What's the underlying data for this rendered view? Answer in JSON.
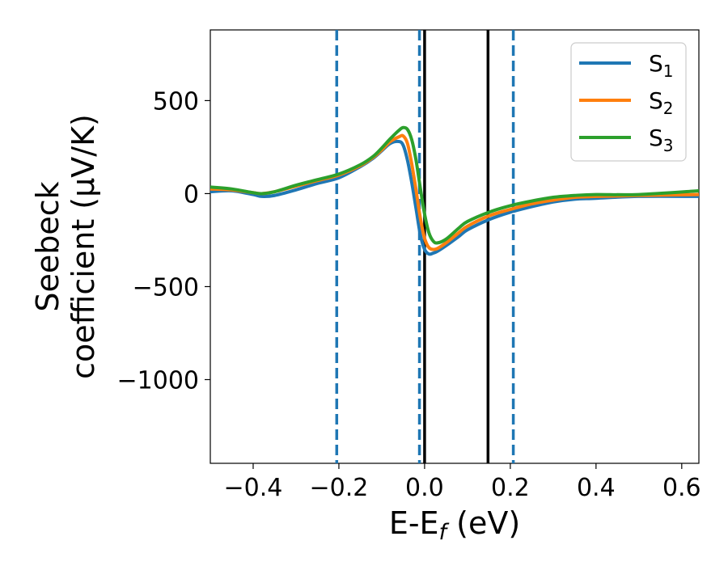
{
  "chart_data": {
    "type": "line",
    "xlabel": "E-E",
    "xlabel_sub": "f",
    "xlabel_unit": " (eV)",
    "ylabel_line1": "Seebeck",
    "ylabel_line2": "coefficient  (μV/K)",
    "xlim": [
      -0.5,
      0.64
    ],
    "ylim": [
      -1450,
      880
    ],
    "x_ticks": [
      -0.4,
      -0.2,
      0.0,
      0.2,
      0.4,
      0.6
    ],
    "x_tick_labels": [
      "−0.4",
      "−0.2",
      "0.0",
      "0.2",
      "0.4",
      "0.6"
    ],
    "y_ticks": [
      500,
      0,
      -500,
      -1000
    ],
    "y_tick_labels": [
      "500",
      "0",
      "−500",
      "−1000"
    ],
    "grid": false,
    "legend_position": "top-right",
    "series": [
      {
        "name": "S",
        "sub": "1",
        "color": "#1f77b4",
        "x": [
          -0.5,
          -0.45,
          -0.4,
          -0.38,
          -0.35,
          -0.3,
          -0.25,
          -0.2,
          -0.15,
          -0.12,
          -0.1,
          -0.08,
          -0.06,
          -0.05,
          -0.04,
          -0.03,
          -0.02,
          -0.01,
          0.0,
          0.01,
          0.02,
          0.03,
          0.05,
          0.08,
          0.1,
          0.15,
          0.2,
          0.25,
          0.3,
          0.35,
          0.4,
          0.5,
          0.64
        ],
        "values": [
          10,
          15,
          -5,
          -15,
          -10,
          20,
          55,
          85,
          145,
          190,
          230,
          270,
          280,
          260,
          180,
          60,
          -80,
          -220,
          -300,
          -325,
          -320,
          -310,
          -280,
          -230,
          -195,
          -140,
          -100,
          -70,
          -45,
          -30,
          -25,
          -15,
          -15
        ]
      },
      {
        "name": "S",
        "sub": "2",
        "color": "#ff7f0e",
        "x": [
          -0.5,
          -0.45,
          -0.4,
          -0.38,
          -0.35,
          -0.3,
          -0.25,
          -0.2,
          -0.15,
          -0.12,
          -0.1,
          -0.08,
          -0.06,
          -0.05,
          -0.04,
          -0.03,
          -0.02,
          -0.01,
          0.0,
          0.01,
          0.02,
          0.03,
          0.05,
          0.08,
          0.1,
          0.15,
          0.2,
          0.25,
          0.3,
          0.35,
          0.4,
          0.5,
          0.64
        ],
        "values": [
          25,
          20,
          5,
          0,
          10,
          40,
          70,
          100,
          150,
          195,
          235,
          280,
          305,
          310,
          270,
          160,
          20,
          -130,
          -240,
          -290,
          -300,
          -295,
          -265,
          -210,
          -175,
          -120,
          -85,
          -55,
          -35,
          -20,
          -15,
          -10,
          -5
        ]
      },
      {
        "name": "S",
        "sub": "3",
        "color": "#2ca02c",
        "x": [
          -0.5,
          -0.45,
          -0.4,
          -0.38,
          -0.35,
          -0.3,
          -0.25,
          -0.2,
          -0.15,
          -0.12,
          -0.1,
          -0.08,
          -0.06,
          -0.05,
          -0.04,
          -0.03,
          -0.02,
          -0.01,
          0.0,
          0.01,
          0.02,
          0.03,
          0.05,
          0.08,
          0.1,
          0.15,
          0.2,
          0.25,
          0.3,
          0.35,
          0.4,
          0.5,
          0.64
        ],
        "values": [
          35,
          25,
          5,
          0,
          10,
          45,
          75,
          105,
          155,
          200,
          245,
          295,
          340,
          355,
          345,
          290,
          180,
          30,
          -110,
          -210,
          -255,
          -265,
          -245,
          -185,
          -150,
          -100,
          -65,
          -40,
          -20,
          -10,
          -5,
          -5,
          15
        ]
      }
    ],
    "vlines": [
      {
        "x": -0.205,
        "style": "dashed",
        "color": "#1f77b4"
      },
      {
        "x": -0.012,
        "style": "dashed",
        "color": "#1f77b4"
      },
      {
        "x": 0.207,
        "style": "dashed",
        "color": "#1f77b4"
      },
      {
        "x": 0.0,
        "style": "solid",
        "color": "#000000"
      },
      {
        "x": 0.148,
        "style": "solid",
        "color": "#000000"
      }
    ]
  }
}
